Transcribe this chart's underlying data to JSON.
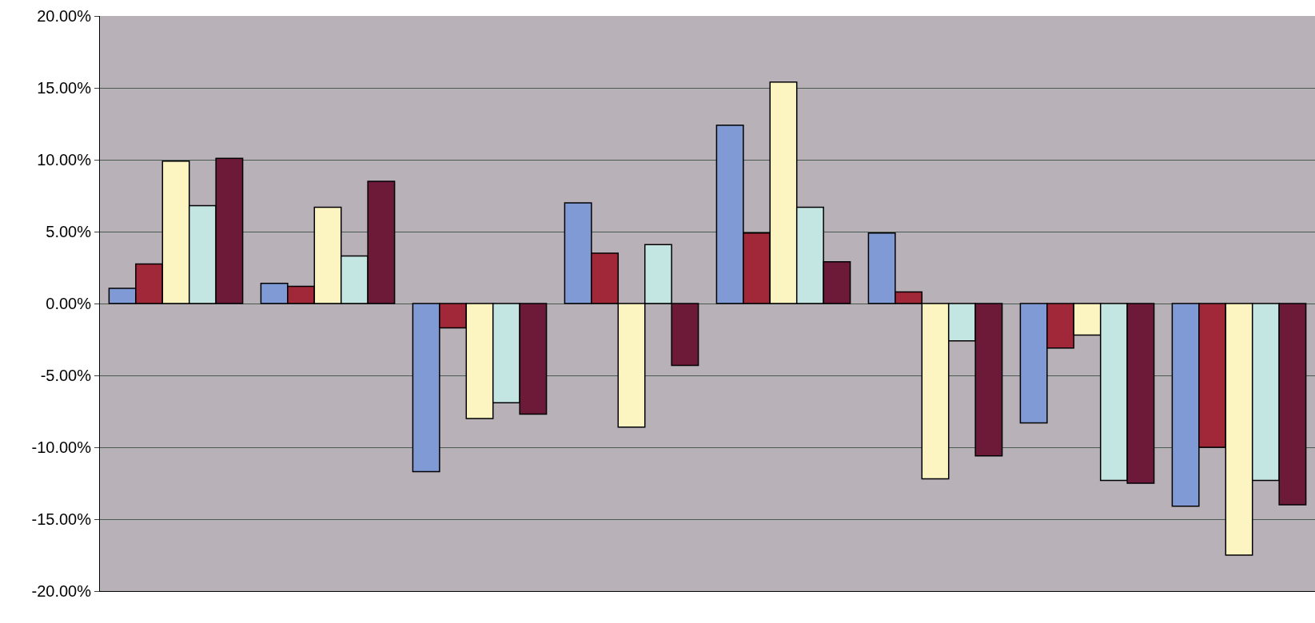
{
  "chart_data": {
    "type": "bar",
    "categories": [
      null,
      null,
      null,
      null,
      null,
      null,
      null,
      null
    ],
    "series": [
      {
        "color": "#7f9ad4",
        "values": [
          1.05,
          1.4,
          -11.7,
          7.0,
          12.4,
          4.9,
          -8.3,
          -14.1
        ]
      },
      {
        "color": "#a02838",
        "values": [
          2.75,
          1.2,
          -1.7,
          3.5,
          4.9,
          0.8,
          -3.1,
          -10.0
        ]
      },
      {
        "color": "#fcf5c2",
        "values": [
          9.9,
          6.7,
          -8.0,
          -8.6,
          15.4,
          -12.2,
          -2.2,
          -17.5
        ]
      },
      {
        "color": "#c4e6e2",
        "values": [
          6.8,
          3.3,
          -6.9,
          4.1,
          6.7,
          -2.6,
          -12.3,
          -12.3
        ]
      },
      {
        "color": "#6c1a38",
        "values": [
          10.1,
          8.5,
          -7.7,
          -4.3,
          2.9,
          -10.6,
          -12.5,
          -14.0
        ]
      }
    ],
    "ylim": [
      -20,
      20
    ],
    "yticks": [
      {
        "value": -20,
        "label": "-20.00%"
      },
      {
        "value": -15,
        "label": "-15.00%"
      },
      {
        "value": -10,
        "label": "-10.00%"
      },
      {
        "value": -5,
        "label": "-5.00%"
      },
      {
        "value": 0,
        "label": "0.00%"
      },
      {
        "value": 5,
        "label": "5.00%"
      },
      {
        "value": 10,
        "label": "10.00%"
      },
      {
        "value": 15,
        "label": "15.00%"
      },
      {
        "value": 20,
        "label": "20.00%"
      }
    ],
    "grid": "y",
    "legend": false,
    "tick_labels": "y"
  }
}
